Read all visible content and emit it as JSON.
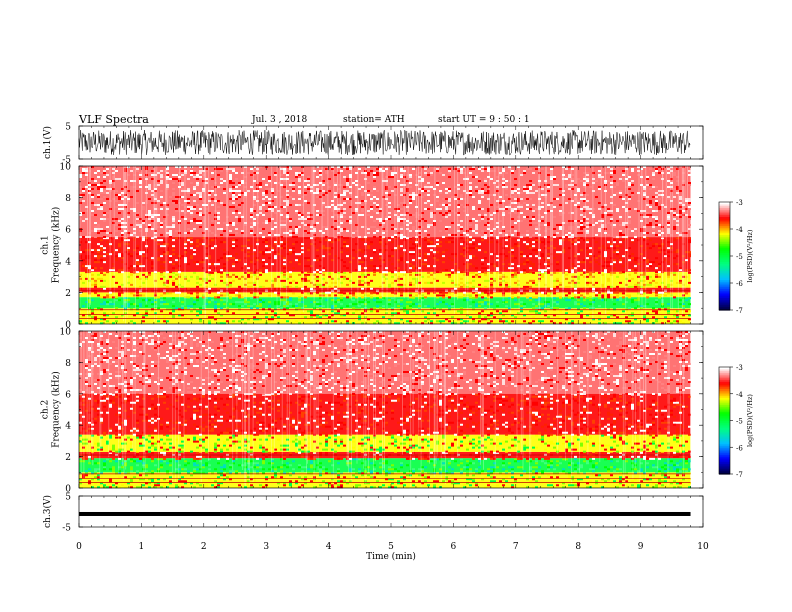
{
  "header": {
    "title": "VLF  Spectra",
    "date": "Jul.  3  , 2018",
    "station": "station= ATH",
    "start": "start  UT  =    9  : 50 : 1"
  },
  "chart_data": [
    {
      "type": "line",
      "panel": "ch1-waveform",
      "ylabel": "ch.1(V)",
      "ylim": [
        -5,
        5
      ],
      "yticks": [
        5,
        -5
      ],
      "x_range_min": [
        0,
        9.8
      ],
      "amplitude_range_V": [
        -3.8,
        3.8
      ],
      "color": "#000000"
    },
    {
      "type": "heatmap",
      "panel": "ch1-spectrogram",
      "ylabel": "ch.1\nFrequency  (kHz)",
      "ylim": [
        0,
        10
      ],
      "yticks": [
        0,
        2,
        4,
        6,
        8,
        10
      ],
      "x_range_min": [
        0,
        9.8
      ],
      "bands": [
        {
          "freq_khz": [
            0,
            1.0
          ],
          "level": "yellow/green"
        },
        {
          "freq_khz": [
            1.0,
            1.7
          ],
          "level": "green"
        },
        {
          "freq_khz": [
            1.7,
            2.0
          ],
          "level": "yellow"
        },
        {
          "freq_khz": [
            2.0,
            2.3
          ],
          "level": "red"
        },
        {
          "freq_khz": [
            2.3,
            3.3
          ],
          "level": "yellow"
        },
        {
          "freq_khz": [
            3.3,
            5.5
          ],
          "level": "red"
        },
        {
          "freq_khz": [
            5.5,
            10
          ],
          "level": "red/white"
        }
      ],
      "colorbar": {
        "label": "log(PSD)(V²/Hz)",
        "ticks": [
          -3,
          -4,
          -5,
          -6,
          -7
        ],
        "range": [
          -7,
          -3
        ]
      }
    },
    {
      "type": "heatmap",
      "panel": "ch2-spectrogram",
      "ylabel": "ch.2\nFrequency  (kHz)",
      "ylim": [
        0,
        10
      ],
      "yticks": [
        0,
        2,
        4,
        6,
        8,
        10
      ],
      "x_range_min": [
        0,
        9.8
      ],
      "bands": [
        {
          "freq_khz": [
            0,
            1.0
          ],
          "level": "yellow/green"
        },
        {
          "freq_khz": [
            1.0,
            1.9
          ],
          "level": "green"
        },
        {
          "freq_khz": [
            1.9,
            2.3
          ],
          "level": "red"
        },
        {
          "freq_khz": [
            2.3,
            3.4
          ],
          "level": "yellow/green"
        },
        {
          "freq_khz": [
            3.4,
            6.0
          ],
          "level": "red"
        },
        {
          "freq_khz": [
            6.0,
            10
          ],
          "level": "red/white"
        }
      ],
      "colorbar": {
        "label": "log(PSD)(V²/Hz)",
        "ticks": [
          -3,
          -4,
          -5,
          -6,
          -7
        ],
        "range": [
          -7,
          -3
        ]
      }
    },
    {
      "type": "line",
      "panel": "ch3-waveform",
      "ylabel": "ch.3(V)",
      "ylim": [
        -5,
        5
      ],
      "yticks": [
        5,
        -5
      ],
      "x_range_min": [
        0,
        9.8
      ],
      "level_V": -0.8,
      "color": "#000000"
    }
  ],
  "xaxis": {
    "label": "Time  (min)",
    "range": [
      0,
      10
    ],
    "ticks": [
      "0",
      "1",
      "2",
      "3",
      "4",
      "5",
      "6",
      "7",
      "8",
      "9",
      "10"
    ]
  },
  "colors": {
    "psd_ramp": [
      "#000040",
      "#0000ff",
      "#00c0ff",
      "#00ff80",
      "#00ff00",
      "#ffff00",
      "#ff0000",
      "#ffffff"
    ]
  }
}
